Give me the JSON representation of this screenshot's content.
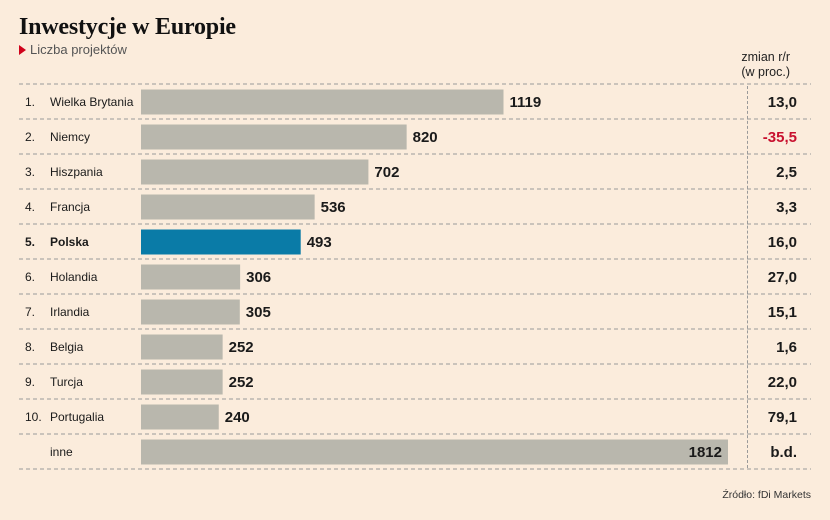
{
  "title": "Inwestycje w Europie",
  "subtitle": "Liczba projektów",
  "yoy_header_line1": "zmian r/r",
  "yoy_header_line2": "(w proc.)",
  "source": "Źródło: fDi Markets",
  "colors": {
    "bar": "#b9b7ad",
    "highlight": "#0a7ba7",
    "negative": "#c8102e",
    "text": "#1a1a1a"
  },
  "chart_data": {
    "type": "bar",
    "orientation": "horizontal",
    "title": "Inwestycje w Europie",
    "subtitle": "Liczba projektów",
    "rows": [
      {
        "rank": "1.",
        "country": "Wielka Brytania",
        "value": 1119,
        "value_label": "1119",
        "yoy": "13,0",
        "highlight": false,
        "negative": false
      },
      {
        "rank": "2.",
        "country": "Niemcy",
        "value": 820,
        "value_label": "820",
        "yoy": "-35,5",
        "highlight": false,
        "negative": true
      },
      {
        "rank": "3.",
        "country": "Hiszpania",
        "value": 702,
        "value_label": "702",
        "yoy": "2,5",
        "highlight": false,
        "negative": false
      },
      {
        "rank": "4.",
        "country": "Francja",
        "value": 536,
        "value_label": "536",
        "yoy": "3,3",
        "highlight": false,
        "negative": false
      },
      {
        "rank": "5.",
        "country": "Polska",
        "value": 493,
        "value_label": "493",
        "yoy": "16,0",
        "highlight": true,
        "negative": false
      },
      {
        "rank": "6.",
        "country": "Holandia",
        "value": 306,
        "value_label": "306",
        "yoy": "27,0",
        "highlight": false,
        "negative": false
      },
      {
        "rank": "7.",
        "country": "Irlandia",
        "value": 305,
        "value_label": "305",
        "yoy": "15,1",
        "highlight": false,
        "negative": false
      },
      {
        "rank": "8.",
        "country": "Belgia",
        "value": 252,
        "value_label": "252",
        "yoy": "1,6",
        "highlight": false,
        "negative": false
      },
      {
        "rank": "9.",
        "country": "Turcja",
        "value": 252,
        "value_label": "252",
        "yoy": "22,0",
        "highlight": false,
        "negative": false
      },
      {
        "rank": "10.",
        "country": "Portugalia",
        "value": 240,
        "value_label": "240",
        "yoy": "79,1",
        "highlight": false,
        "negative": false
      },
      {
        "rank": "",
        "country": "inne",
        "value": 1812,
        "value_label": "1812",
        "yoy": "b.d.",
        "highlight": false,
        "negative": false
      }
    ],
    "xlim": [
      0,
      1812
    ],
    "grid": false
  }
}
